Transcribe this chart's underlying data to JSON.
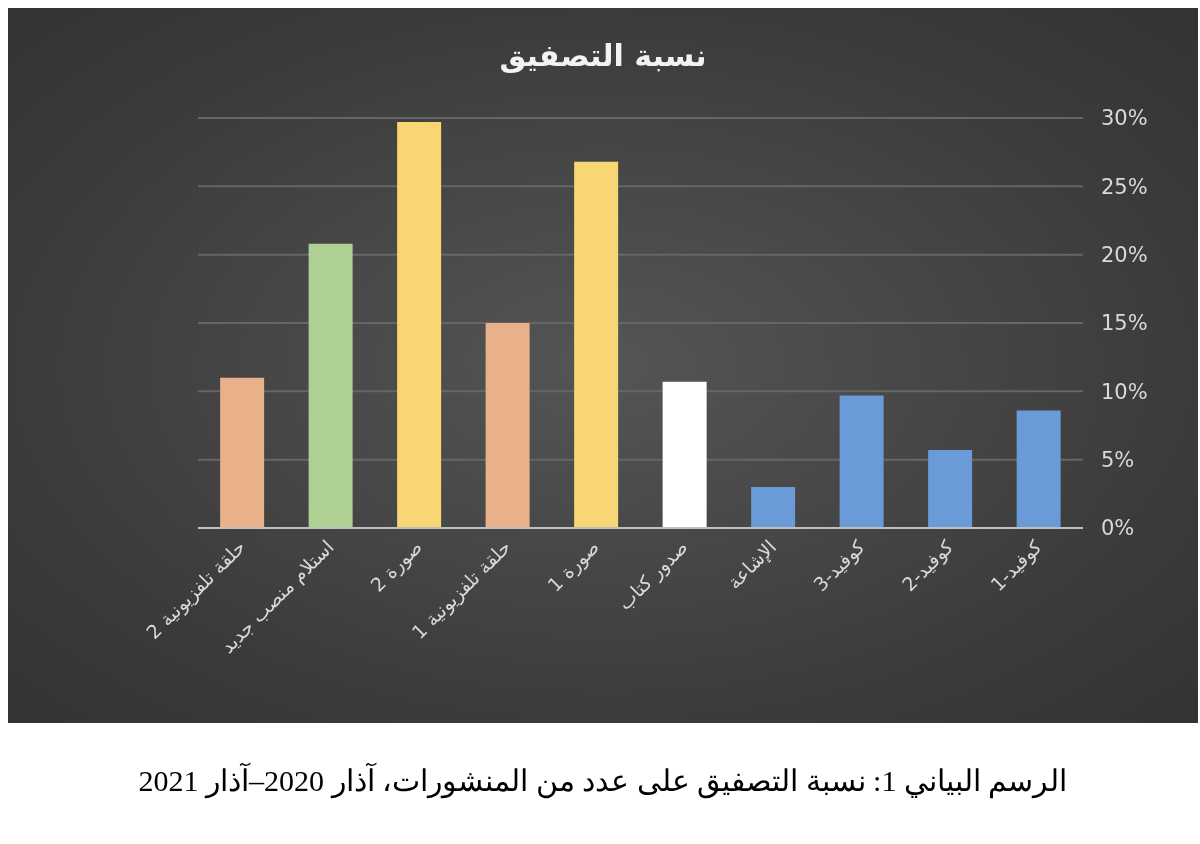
{
  "chart_data": {
    "type": "bar",
    "title": "نسبة التصفيق",
    "categories": [
      "حلقة تلفزيونية 2",
      "استلام منصب جديد",
      "صورة 2",
      "حلقة تلفزيونية 1",
      "صورة 1",
      "صدور كتاب",
      "الإشاعة",
      "كوفيد-3",
      "كوفيد-2",
      "كوفيد-1"
    ],
    "values": [
      11,
      20.8,
      29.7,
      15,
      26.8,
      10.7,
      3,
      9.7,
      5.7,
      8.6
    ],
    "colors": [
      "#e9b18a",
      "#afd093",
      "#f8d674",
      "#e9b18a",
      "#f8d674",
      "#ffffff",
      "#6a9bd8",
      "#6a9bd8",
      "#6a9bd8",
      "#6a9bd8"
    ],
    "ylim": [
      0,
      30
    ],
    "yticks": [
      {
        "value": 0,
        "label": "0%"
      },
      {
        "value": 5,
        "label": "5%"
      },
      {
        "value": 10,
        "label": "10%"
      },
      {
        "value": 15,
        "label": "15%"
      },
      {
        "value": 20,
        "label": "20%"
      },
      {
        "value": 25,
        "label": "25%"
      },
      {
        "value": 30,
        "label": "30%"
      }
    ],
    "grid": "y",
    "legend": false,
    "annotations": [
      "الرسم البياني 1: نسبة التصفيق على عدد من المنشورات، آذار 2020–آذار 2021"
    ]
  }
}
